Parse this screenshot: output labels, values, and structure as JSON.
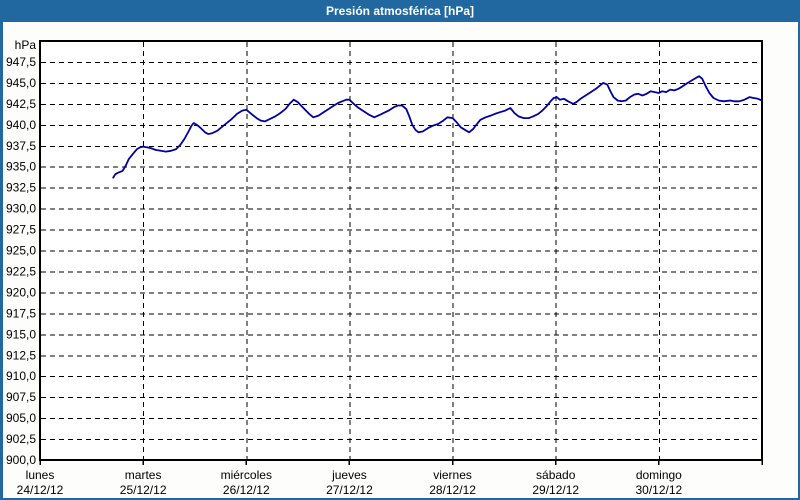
{
  "window": {
    "title": "Presión atmosférica [hPa]"
  },
  "colors": {
    "titlebar_bg": "#20689f",
    "titlebar_text": "#ffffff",
    "frame_border": "#20689f",
    "plot_border": "#000000",
    "gridline": "#000000",
    "series_line": "#0000a0",
    "label_text": "#000000",
    "background": "#fdfdfb",
    "plot_background": "#ffffff"
  },
  "chart_data": {
    "type": "line",
    "title": "Presión atmosférica [hPa]",
    "y_unit_label": "hPa",
    "ylim": [
      900,
      950
    ],
    "ytick_step": 2.5,
    "yticks": [
      {
        "value": 947.5,
        "label": "947,5"
      },
      {
        "value": 945.0,
        "label": "945,0"
      },
      {
        "value": 942.5,
        "label": "942,5"
      },
      {
        "value": 940.0,
        "label": "940,0"
      },
      {
        "value": 937.5,
        "label": "937,5"
      },
      {
        "value": 935.0,
        "label": "935,0"
      },
      {
        "value": 932.5,
        "label": "932,5"
      },
      {
        "value": 930.0,
        "label": "930,0"
      },
      {
        "value": 927.5,
        "label": "927,5"
      },
      {
        "value": 925.0,
        "label": "925,0"
      },
      {
        "value": 922.5,
        "label": "922,5"
      },
      {
        "value": 920.0,
        "label": "920,0"
      },
      {
        "value": 917.5,
        "label": "917,5"
      },
      {
        "value": 915.0,
        "label": "915,0"
      },
      {
        "value": 912.5,
        "label": "912,5"
      },
      {
        "value": 910.0,
        "label": "910,0"
      },
      {
        "value": 907.5,
        "label": "907,5"
      },
      {
        "value": 905.0,
        "label": "905,0"
      },
      {
        "value": 902.5,
        "label": "902,5"
      },
      {
        "value": 900.0,
        "label": "900,0"
      }
    ],
    "x_categories": [
      {
        "day": "lunes",
        "date": "24/12/12"
      },
      {
        "day": "martes",
        "date": "25/12/12"
      },
      {
        "day": "miércoles",
        "date": "26/12/12"
      },
      {
        "day": "jueves",
        "date": "27/12/12"
      },
      {
        "day": "viernes",
        "date": "28/12/12"
      },
      {
        "day": "sábado",
        "date": "29/12/12"
      },
      {
        "day": "domingo",
        "date": "30/12/12"
      }
    ],
    "grid": "dashed",
    "legend": "none",
    "series": [
      {
        "name": "presión atmosférica",
        "unit": "hPa",
        "points": [
          [
            0.71,
            933.7
          ],
          [
            0.73,
            934.1
          ],
          [
            0.76,
            934.3
          ],
          [
            0.8,
            934.5
          ],
          [
            0.83,
            935.1
          ],
          [
            0.86,
            935.9
          ],
          [
            0.9,
            936.5
          ],
          [
            0.94,
            937.1
          ],
          [
            0.97,
            937.3
          ],
          [
            1.0,
            937.4
          ],
          [
            1.04,
            937.3
          ],
          [
            1.08,
            937.2
          ],
          [
            1.12,
            937.0
          ],
          [
            1.17,
            936.9
          ],
          [
            1.22,
            936.8
          ],
          [
            1.27,
            936.9
          ],
          [
            1.32,
            937.1
          ],
          [
            1.36,
            937.6
          ],
          [
            1.4,
            938.3
          ],
          [
            1.44,
            939.2
          ],
          [
            1.47,
            939.9
          ],
          [
            1.49,
            940.2
          ],
          [
            1.52,
            940.0
          ],
          [
            1.56,
            939.6
          ],
          [
            1.6,
            939.1
          ],
          [
            1.63,
            938.9
          ],
          [
            1.67,
            939.0
          ],
          [
            1.72,
            939.3
          ],
          [
            1.76,
            939.7
          ],
          [
            1.81,
            940.2
          ],
          [
            1.86,
            940.7
          ],
          [
            1.91,
            941.3
          ],
          [
            1.96,
            941.7
          ],
          [
            2.0,
            941.8
          ],
          [
            2.05,
            941.3
          ],
          [
            2.1,
            940.8
          ],
          [
            2.14,
            940.5
          ],
          [
            2.18,
            940.4
          ],
          [
            2.23,
            940.7
          ],
          [
            2.28,
            941.0
          ],
          [
            2.33,
            941.4
          ],
          [
            2.38,
            941.9
          ],
          [
            2.42,
            942.5
          ],
          [
            2.46,
            943.0
          ],
          [
            2.5,
            942.7
          ],
          [
            2.53,
            942.3
          ],
          [
            2.57,
            941.8
          ],
          [
            2.61,
            941.3
          ],
          [
            2.65,
            940.9
          ],
          [
            2.7,
            941.1
          ],
          [
            2.75,
            941.5
          ],
          [
            2.8,
            941.9
          ],
          [
            2.85,
            942.3
          ],
          [
            2.89,
            942.6
          ],
          [
            2.93,
            942.8
          ],
          [
            2.97,
            943.0
          ],
          [
            3.0,
            943.0
          ],
          [
            3.05,
            942.4
          ],
          [
            3.09,
            942.0
          ],
          [
            3.14,
            941.6
          ],
          [
            3.19,
            941.2
          ],
          [
            3.24,
            940.9
          ],
          [
            3.28,
            941.1
          ],
          [
            3.33,
            941.4
          ],
          [
            3.38,
            941.7
          ],
          [
            3.43,
            942.1
          ],
          [
            3.47,
            942.3
          ],
          [
            3.51,
            942.3
          ],
          [
            3.55,
            941.9
          ],
          [
            3.58,
            941.0
          ],
          [
            3.61,
            940.0
          ],
          [
            3.64,
            939.4
          ],
          [
            3.67,
            939.1
          ],
          [
            3.71,
            939.2
          ],
          [
            3.76,
            939.6
          ],
          [
            3.81,
            939.9
          ],
          [
            3.86,
            940.1
          ],
          [
            3.91,
            940.5
          ],
          [
            3.95,
            940.9
          ],
          [
            4.0,
            940.8
          ],
          [
            4.04,
            940.3
          ],
          [
            4.08,
            939.7
          ],
          [
            4.12,
            939.4
          ],
          [
            4.16,
            939.1
          ],
          [
            4.2,
            939.5
          ],
          [
            4.23,
            940.0
          ],
          [
            4.27,
            940.6
          ],
          [
            4.32,
            940.9
          ],
          [
            4.37,
            941.1
          ],
          [
            4.41,
            941.3
          ],
          [
            4.46,
            941.5
          ],
          [
            4.51,
            941.7
          ],
          [
            4.56,
            942.0
          ],
          [
            4.6,
            941.4
          ],
          [
            4.64,
            941.0
          ],
          [
            4.69,
            940.8
          ],
          [
            4.74,
            940.8
          ],
          [
            4.78,
            941.0
          ],
          [
            4.83,
            941.3
          ],
          [
            4.87,
            941.7
          ],
          [
            4.91,
            942.2
          ],
          [
            4.95,
            942.8
          ],
          [
            4.98,
            943.2
          ],
          [
            5.01,
            943.3
          ],
          [
            5.04,
            943.0
          ],
          [
            5.08,
            943.1
          ],
          [
            5.12,
            942.8
          ],
          [
            5.17,
            942.5
          ],
          [
            5.2,
            942.7
          ],
          [
            5.24,
            943.1
          ],
          [
            5.29,
            943.5
          ],
          [
            5.34,
            943.9
          ],
          [
            5.39,
            944.3
          ],
          [
            5.43,
            944.7
          ],
          [
            5.46,
            945.0
          ],
          [
            5.5,
            944.8
          ],
          [
            5.53,
            944.0
          ],
          [
            5.56,
            943.3
          ],
          [
            5.6,
            942.9
          ],
          [
            5.64,
            942.8
          ],
          [
            5.68,
            942.9
          ],
          [
            5.72,
            943.3
          ],
          [
            5.76,
            943.6
          ],
          [
            5.8,
            943.7
          ],
          [
            5.84,
            943.5
          ],
          [
            5.88,
            943.7
          ],
          [
            5.92,
            944.0
          ],
          [
            5.96,
            943.9
          ],
          [
            6.0,
            943.8
          ],
          [
            6.03,
            944.0
          ],
          [
            6.07,
            943.9
          ],
          [
            6.11,
            944.2
          ],
          [
            6.15,
            944.1
          ],
          [
            6.19,
            944.3
          ],
          [
            6.23,
            944.6
          ],
          [
            6.28,
            945.0
          ],
          [
            6.32,
            945.3
          ],
          [
            6.36,
            945.6
          ],
          [
            6.39,
            945.8
          ],
          [
            6.42,
            945.5
          ],
          [
            6.45,
            944.7
          ],
          [
            6.49,
            943.8
          ],
          [
            6.53,
            943.2
          ],
          [
            6.58,
            942.9
          ],
          [
            6.63,
            942.8
          ],
          [
            6.69,
            942.9
          ],
          [
            6.73,
            942.8
          ],
          [
            6.78,
            942.8
          ],
          [
            6.83,
            943.0
          ],
          [
            6.88,
            943.3
          ],
          [
            6.92,
            943.2
          ],
          [
            6.96,
            943.1
          ],
          [
            7.0,
            942.9
          ]
        ]
      }
    ]
  }
}
